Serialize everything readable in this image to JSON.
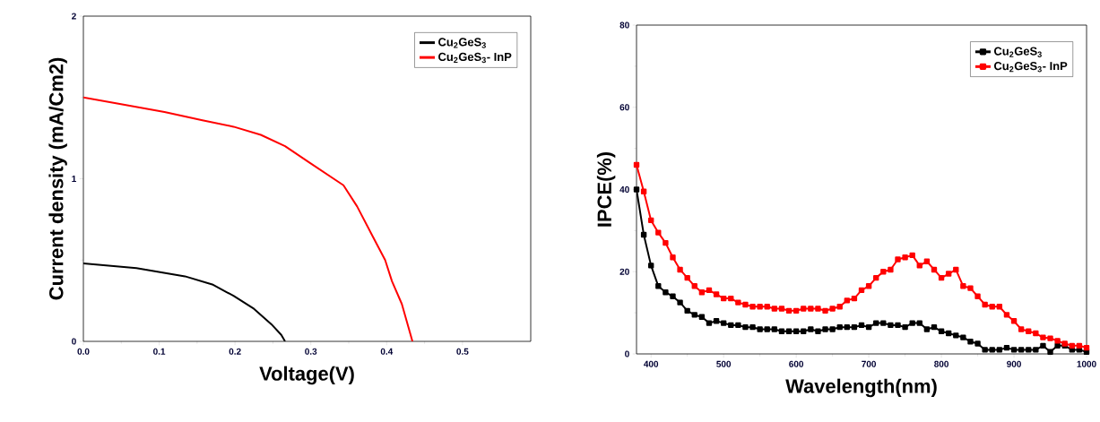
{
  "chart_data": [
    {
      "type": "line",
      "xlabel": "Voltage(V)",
      "ylabel": "Current density (mA/Cm2)",
      "xlim": [
        0,
        0.59
      ],
      "ylim": [
        0,
        2
      ],
      "xticks": [
        {
          "value": 0,
          "label": "0.0"
        },
        {
          "value": 0.1,
          "label": "0.1"
        },
        {
          "value": 0.2,
          "label": "0.2"
        },
        {
          "value": 0.3,
          "label": "0.3"
        },
        {
          "value": 0.4,
          "label": "0.4"
        },
        {
          "value": 0.5,
          "label": "0.5"
        }
      ],
      "yticks": [
        0,
        1,
        2
      ],
      "legend": "top right",
      "marker": "none",
      "line_style": "solid",
      "series": [
        {
          "name": "Cu$_{2}$GeS$_{3}$",
          "color": "#000000",
          "x": [
            0,
            0.07,
            0.134,
            0.17,
            0.198,
            0.225,
            0.248,
            0.261,
            0.266
          ],
          "values": [
            0.48,
            0.45,
            0.4,
            0.35,
            0.28,
            0.2,
            0.105,
            0.04,
            0
          ]
        },
        {
          "name": "Cu$_{2}$GeS$_{3}$- InP",
          "color": "#ff0000",
          "x": [
            0,
            0.048,
            0.107,
            0.157,
            0.198,
            0.234,
            0.266,
            0.298,
            0.343,
            0.361,
            0.38,
            0.398,
            0.407,
            0.42,
            0.434
          ],
          "values": [
            1.5,
            1.46,
            1.41,
            1.36,
            1.32,
            1.27,
            1.2,
            1.1,
            0.96,
            0.83,
            0.66,
            0.5,
            0.37,
            0.23,
            0
          ]
        }
      ]
    },
    {
      "type": "line",
      "xlabel": "Wavelength(nm)",
      "ylabel": "IPCE(%)",
      "xlim": [
        380,
        1000
      ],
      "ylim": [
        0,
        80
      ],
      "xticks": [
        400,
        500,
        600,
        700,
        800,
        900,
        1000
      ],
      "yticks": [
        0,
        20,
        40,
        60,
        80
      ],
      "legend": "top right",
      "marker": "square",
      "line_style": "solid",
      "x": [
        380,
        390,
        400,
        410,
        420,
        430,
        440,
        450,
        460,
        470,
        480,
        490,
        500,
        510,
        520,
        530,
        540,
        550,
        560,
        570,
        580,
        590,
        600,
        610,
        620,
        630,
        640,
        650,
        660,
        670,
        680,
        690,
        700,
        710,
        720,
        730,
        740,
        750,
        760,
        770,
        780,
        790,
        800,
        810,
        820,
        830,
        840,
        850,
        860,
        870,
        880,
        890,
        900,
        910,
        920,
        930,
        940,
        950,
        960,
        970,
        980,
        990,
        1000
      ],
      "series": [
        {
          "name": "Cu$_{2}$GeS$_{3}$",
          "color": "#000000",
          "values": [
            40,
            29,
            21.5,
            16.5,
            15,
            14,
            12.5,
            10.5,
            9.5,
            9,
            7.5,
            8,
            7.5,
            7,
            7,
            6.5,
            6.5,
            6,
            6,
            6,
            5.5,
            5.5,
            5.5,
            5.5,
            6,
            5.5,
            6,
            6,
            6.5,
            6.5,
            6.5,
            7,
            6.5,
            7.5,
            7.5,
            7,
            7,
            6.5,
            7.5,
            7.5,
            6,
            6.5,
            5.5,
            5,
            4.5,
            4,
            3,
            2.5,
            1,
            1,
            1,
            1.5,
            1,
            1,
            1,
            1,
            2,
            0.5,
            2,
            2,
            1,
            1,
            0.5
          ]
        },
        {
          "name": "Cu$_{2}$GeS$_{3}$- InP",
          "color": "#ff0000",
          "values": [
            46,
            39.5,
            32.5,
            29.5,
            27,
            23.5,
            20.5,
            18.5,
            16.5,
            15,
            15.5,
            14.5,
            13.5,
            13.5,
            12.5,
            12,
            11.5,
            11.5,
            11.5,
            11,
            11,
            10.5,
            10.5,
            11,
            11,
            11,
            10.5,
            11,
            11.5,
            13,
            13.5,
            15.5,
            16.5,
            18.5,
            20,
            20.5,
            23,
            23.5,
            24,
            21.5,
            22.5,
            20.5,
            18.5,
            19.5,
            20.5,
            16.5,
            16,
            14,
            12,
            11.5,
            11.5,
            9.5,
            8,
            6,
            5.5,
            5,
            4,
            3.8,
            3.2,
            2.5,
            2,
            2,
            1.5
          ]
        }
      ]
    }
  ]
}
